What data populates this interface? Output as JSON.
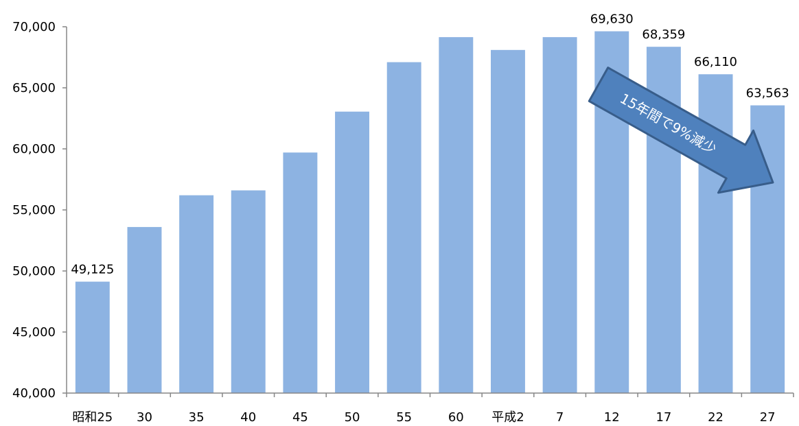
{
  "chart_data": {
    "type": "bar",
    "categories": [
      "昭和25",
      "30",
      "35",
      "40",
      "45",
      "50",
      "55",
      "60",
      "平成2",
      "7",
      "12",
      "17",
      "22",
      "27"
    ],
    "values": [
      49125,
      53600,
      56200,
      56600,
      59700,
      63050,
      67100,
      69150,
      68100,
      69150,
      69630,
      68359,
      66110,
      63563
    ],
    "data_labels": [
      "49,125",
      null,
      null,
      null,
      null,
      null,
      null,
      null,
      null,
      null,
      "69,630",
      "68,359",
      "66,110",
      "63,563"
    ],
    "ylim": [
      40000,
      70000
    ],
    "yticks": [
      "40,000",
      "45,000",
      "50,000",
      "55,000",
      "60,000",
      "65,000",
      "70,000"
    ],
    "title": "",
    "xlabel": "",
    "ylabel": "",
    "bar_color": "#8db3e2",
    "annotation": {
      "text": "15年間で9%減少",
      "color": "#4f81bd",
      "border_color": "#385d8a"
    }
  }
}
